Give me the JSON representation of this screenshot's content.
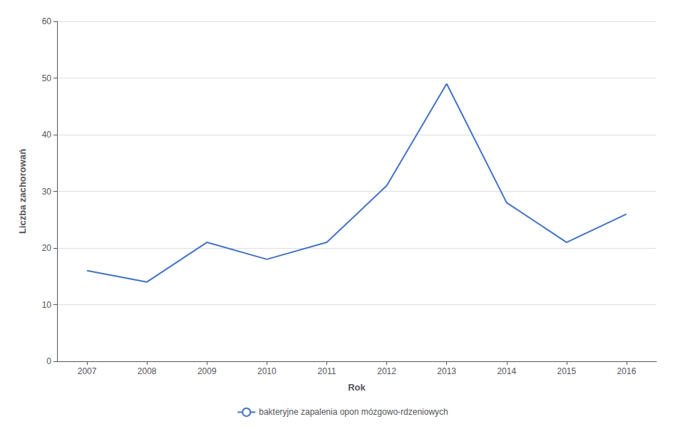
{
  "chart_data": {
    "type": "line",
    "x": [
      2007,
      2008,
      2009,
      2010,
      2011,
      2012,
      2013,
      2014,
      2015,
      2016
    ],
    "series": [
      {
        "name": "bakteryjne zapalenia opon mózgowo-rdzeniowych",
        "color": "#4472C4",
        "values": [
          16,
          14,
          21,
          18,
          21,
          31,
          49,
          28,
          21,
          26
        ]
      }
    ],
    "xlabel": "Rok",
    "ylabel": "Liczba zachorowań",
    "xlim": [
      2006.5,
      2016.5
    ],
    "xticks": [
      2007,
      2008,
      2009,
      2010,
      2011,
      2012,
      2013,
      2014,
      2015,
      2016
    ],
    "ylim": [
      0,
      60
    ],
    "yticks": [
      0,
      10,
      20,
      30,
      40,
      50,
      60
    ],
    "grid": true,
    "legend": "bottom"
  }
}
